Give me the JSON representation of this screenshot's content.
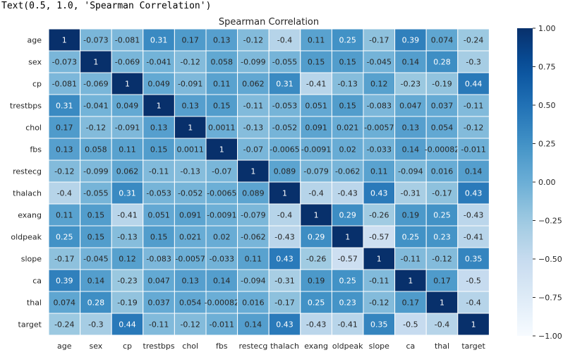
{
  "output_text": "Text(0.5, 1.0, 'Spearman Correlation')",
  "chart_data": {
    "type": "heatmap",
    "title": "Spearman Correlation",
    "colormap": "Blues",
    "colors": {
      "low": "#f7fbff",
      "high": "#08306b"
    },
    "vmin": -1.0,
    "vmax": 1.0,
    "rows": [
      "age",
      "sex",
      "cp",
      "trestbps",
      "chol",
      "fbs",
      "restecg",
      "thalach",
      "exang",
      "oldpeak",
      "slope",
      "ca",
      "thal",
      "target"
    ],
    "cols": [
      "age",
      "sex",
      "cp",
      "trestbps",
      "chol",
      "fbs",
      "restecg",
      "thalach",
      "exang",
      "oldpeak",
      "slope",
      "ca",
      "thal",
      "target"
    ],
    "values": [
      [
        1,
        -0.073,
        -0.081,
        0.31,
        0.17,
        0.13,
        -0.12,
        -0.4,
        0.11,
        0.25,
        -0.17,
        0.39,
        0.074,
        -0.24
      ],
      [
        -0.073,
        1,
        -0.069,
        -0.041,
        -0.12,
        0.058,
        -0.099,
        -0.055,
        0.15,
        0.15,
        -0.045,
        0.14,
        0.28,
        -0.3
      ],
      [
        -0.081,
        -0.069,
        1,
        0.049,
        -0.091,
        0.11,
        0.062,
        0.31,
        -0.41,
        -0.13,
        0.12,
        -0.23,
        -0.19,
        0.44
      ],
      [
        0.31,
        -0.041,
        0.049,
        1,
        0.13,
        0.15,
        -0.11,
        -0.053,
        0.051,
        0.15,
        -0.083,
        0.047,
        0.037,
        -0.11
      ],
      [
        0.17,
        -0.12,
        -0.091,
        0.13,
        1,
        0.0011,
        -0.13,
        -0.052,
        0.091,
        0.021,
        -0.0057,
        0.13,
        0.054,
        -0.12
      ],
      [
        0.13,
        0.058,
        0.11,
        0.15,
        0.0011,
        1,
        -0.07,
        -0.0065,
        -0.0091,
        0.02,
        -0.033,
        0.14,
        -0.00082,
        -0.011
      ],
      [
        -0.12,
        -0.099,
        0.062,
        -0.11,
        -0.13,
        -0.07,
        1,
        0.089,
        -0.079,
        -0.062,
        0.11,
        -0.094,
        0.016,
        0.14
      ],
      [
        -0.4,
        -0.055,
        0.31,
        -0.053,
        -0.052,
        -0.0065,
        0.089,
        1,
        -0.4,
        -0.43,
        0.43,
        -0.31,
        -0.17,
        0.43
      ],
      [
        0.11,
        0.15,
        -0.41,
        0.051,
        0.091,
        -0.0091,
        -0.079,
        -0.4,
        1,
        0.29,
        -0.26,
        0.19,
        0.25,
        -0.43
      ],
      [
        0.25,
        0.15,
        -0.13,
        0.15,
        0.021,
        0.02,
        -0.062,
        -0.43,
        0.29,
        1,
        -0.57,
        0.25,
        0.23,
        -0.41
      ],
      [
        -0.17,
        -0.045,
        0.12,
        -0.083,
        -0.0057,
        -0.033,
        0.11,
        0.43,
        -0.26,
        -0.57,
        1,
        -0.11,
        -0.12,
        0.35
      ],
      [
        0.39,
        0.14,
        -0.23,
        0.047,
        0.13,
        0.14,
        -0.094,
        -0.31,
        0.19,
        0.25,
        -0.11,
        1,
        0.17,
        -0.5
      ],
      [
        0.074,
        0.28,
        -0.19,
        0.037,
        0.054,
        -0.00082,
        0.016,
        -0.17,
        0.25,
        0.23,
        -0.12,
        0.17,
        1,
        -0.4
      ],
      [
        -0.24,
        -0.3,
        0.44,
        -0.11,
        -0.12,
        -0.011,
        0.14,
        0.43,
        -0.43,
        -0.41,
        0.35,
        -0.5,
        -0.4,
        1
      ]
    ],
    "colorbar_ticks": [
      "1.00",
      "0.75",
      "0.50",
      "0.25",
      "0.00",
      "−0.25",
      "−0.50",
      "−0.75",
      "−1.00"
    ],
    "grid": false,
    "legend": "right-colorbar"
  }
}
